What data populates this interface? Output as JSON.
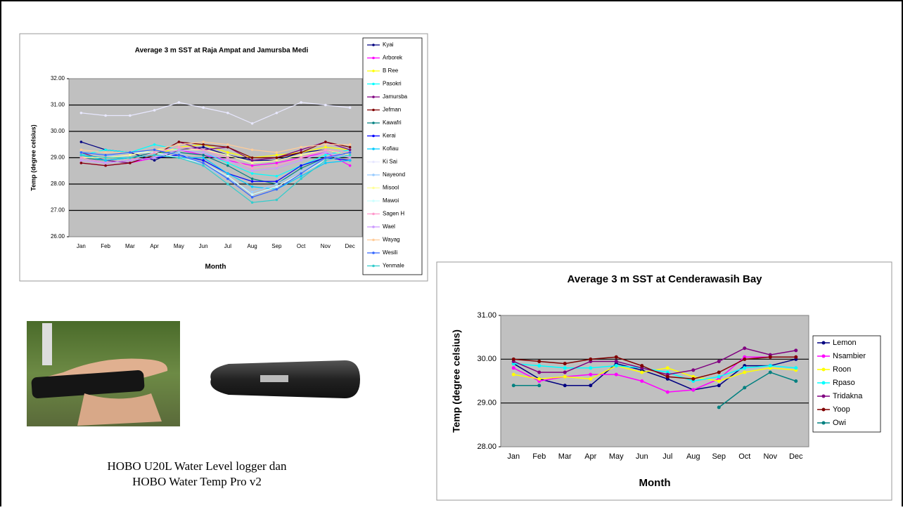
{
  "chart_data": [
    {
      "type": "line",
      "title": "Average 3 m SST at Raja Ampat and Jamursba Medi",
      "x_label": "Month",
      "y_label": "Temp (degree celsius)",
      "categories": [
        "Jan",
        "Feb",
        "Mar",
        "Apr",
        "May",
        "Jun",
        "Jul",
        "Aug",
        "Sep",
        "Oct",
        "Nov",
        "Dec"
      ],
      "ylim": [
        26,
        32
      ],
      "yticks": [
        {
          "value": 26,
          "label": "26.00"
        },
        {
          "value": 27,
          "label": "27.00"
        },
        {
          "value": 28,
          "label": "28.00"
        },
        {
          "value": 29,
          "label": "29.00"
        },
        {
          "value": 30,
          "label": "30.00"
        },
        {
          "value": 31,
          "label": "31.00"
        },
        {
          "value": 32,
          "label": "32.00"
        }
      ],
      "grid": true,
      "series": [
        {
          "name": "Kyai",
          "color": "#000080",
          "values": [
            29.6,
            29.3,
            29.2,
            28.9,
            29.3,
            29.4,
            29.1,
            28.9,
            28.9,
            29.2,
            29.3,
            29.1
          ]
        },
        {
          "name": "Arborek",
          "color": "#ff00ff",
          "values": [
            28.8,
            28.7,
            28.8,
            29.0,
            29.3,
            29.1,
            28.9,
            28.7,
            28.8,
            29.0,
            29.2,
            28.7
          ]
        },
        {
          "name": "B Ree",
          "color": "#ffff00",
          "values": [
            29.0,
            29.0,
            29.0,
            29.1,
            29.4,
            29.5,
            29.2,
            29.0,
            29.1,
            29.2,
            29.4,
            29.3
          ]
        },
        {
          "name": "Pasokri",
          "color": "#00ffff",
          "values": [
            29.1,
            29.3,
            29.2,
            29.5,
            29.3,
            29.2,
            28.8,
            28.4,
            28.3,
            28.7,
            29.1,
            29.3
          ]
        },
        {
          "name": "Jamursba",
          "color": "#800080",
          "values": [
            29.2,
            28.9,
            28.8,
            29.1,
            29.6,
            29.3,
            29.4,
            28.9,
            29.0,
            29.3,
            29.6,
            29.3
          ]
        },
        {
          "name": "Jefman",
          "color": "#800000",
          "values": [
            28.8,
            28.7,
            28.8,
            29.1,
            29.6,
            29.5,
            29.4,
            29.0,
            29.0,
            29.2,
            29.6,
            29.4
          ]
        },
        {
          "name": "Kawafri",
          "color": "#008080",
          "values": [
            29.0,
            28.9,
            29.0,
            29.2,
            29.2,
            29.1,
            28.7,
            28.2,
            28.0,
            28.6,
            29.0,
            29.1
          ]
        },
        {
          "name": "Kerai",
          "color": "#0000ff",
          "values": [
            29.0,
            28.8,
            28.9,
            29.0,
            29.1,
            28.9,
            28.4,
            28.1,
            28.1,
            28.7,
            29.0,
            28.9
          ]
        },
        {
          "name": "Kofiau",
          "color": "#00ccff",
          "values": [
            29.1,
            28.9,
            29.0,
            29.1,
            29.0,
            29.0,
            28.4,
            27.9,
            27.8,
            28.3,
            28.8,
            28.9
          ]
        },
        {
          "name": "Ki Sai",
          "color": "#e8e8ff",
          "values": [
            30.7,
            30.6,
            30.6,
            30.8,
            31.1,
            30.9,
            30.7,
            30.3,
            30.7,
            31.1,
            31.0,
            30.9
          ]
        },
        {
          "name": "Nayeond",
          "color": "#99ccff",
          "values": [
            29.2,
            29.1,
            29.0,
            29.1,
            29.2,
            28.7,
            28.2,
            27.7,
            28.0,
            28.5,
            29.0,
            29.1
          ]
        },
        {
          "name": "Misool",
          "color": "#ffff99",
          "values": [
            29.0,
            29.0,
            29.1,
            29.3,
            29.3,
            29.3,
            29.1,
            28.8,
            28.9,
            29.1,
            29.3,
            29.1
          ]
        },
        {
          "name": "Mawoi",
          "color": "#ccffff",
          "values": [
            29.2,
            29.1,
            29.2,
            29.2,
            29.0,
            28.8,
            28.3,
            27.6,
            27.9,
            28.4,
            28.9,
            29.1
          ]
        },
        {
          "name": "Sagen H",
          "color": "#ff99cc",
          "values": [
            29.0,
            28.8,
            28.9,
            29.2,
            29.4,
            29.3,
            29.0,
            28.6,
            28.7,
            29.0,
            29.3,
            29.2
          ]
        },
        {
          "name": "Wael",
          "color": "#cc99ff",
          "values": [
            28.9,
            28.8,
            28.9,
            29.0,
            29.3,
            29.2,
            28.9,
            28.5,
            28.6,
            28.9,
            29.2,
            29.0
          ]
        },
        {
          "name": "Wayag",
          "color": "#ffcc99",
          "values": [
            29.3,
            29.2,
            29.2,
            29.3,
            29.5,
            29.6,
            29.5,
            29.3,
            29.2,
            29.4,
            29.5,
            29.5
          ]
        },
        {
          "name": "Wesili",
          "color": "#3366ff",
          "values": [
            29.2,
            29.1,
            29.2,
            29.3,
            29.1,
            28.8,
            28.2,
            27.5,
            27.8,
            28.4,
            29.0,
            29.2
          ]
        },
        {
          "name": "Yenmale",
          "color": "#33cccc",
          "values": [
            29.1,
            29.0,
            29.0,
            29.1,
            29.0,
            28.7,
            28.0,
            27.3,
            27.4,
            28.2,
            28.9,
            29.1
          ]
        }
      ]
    },
    {
      "type": "line",
      "title": "Average 3 m SST at Cenderawasih Bay",
      "x_label": "Month",
      "y_label": "Temp (degree celsius)",
      "categories": [
        "Jan",
        "Feb",
        "Mar",
        "Apr",
        "May",
        "Jun",
        "Jul",
        "Aug",
        "Sep",
        "Oct",
        "Nov",
        "Dec"
      ],
      "ylim": [
        28,
        31
      ],
      "yticks": [
        {
          "value": 28,
          "label": "28.00"
        },
        {
          "value": 29,
          "label": "29.00"
        },
        {
          "value": 30,
          "label": "30.00"
        },
        {
          "value": 31,
          "label": "31.00"
        }
      ],
      "grid": true,
      "series": [
        {
          "name": "Lemon",
          "color": "#000080",
          "values": [
            29.9,
            29.55,
            29.4,
            29.4,
            29.9,
            29.75,
            29.55,
            29.3,
            29.4,
            29.85,
            29.85,
            30.0
          ]
        },
        {
          "name": "Nsambier",
          "color": "#ff00ff",
          "values": [
            29.8,
            29.5,
            29.6,
            29.65,
            29.65,
            29.5,
            29.25,
            29.3,
            29.55,
            30.05,
            30.05,
            30.05
          ]
        },
        {
          "name": "Roon",
          "color": "#ffff00",
          "values": [
            29.65,
            29.55,
            29.6,
            29.55,
            29.85,
            29.7,
            29.8,
            29.6,
            29.5,
            29.7,
            29.8,
            29.75
          ]
        },
        {
          "name": "Rpaso",
          "color": "#00ffff",
          "values": [
            29.9,
            29.85,
            29.8,
            29.8,
            29.85,
            29.8,
            29.7,
            29.5,
            29.6,
            29.8,
            29.85,
            29.8
          ]
        },
        {
          "name": "Tridakna",
          "color": "#800080",
          "values": [
            29.95,
            29.7,
            29.7,
            29.95,
            29.95,
            29.8,
            29.65,
            29.75,
            29.95,
            30.25,
            30.1,
            30.2
          ]
        },
        {
          "name": "Yoop",
          "color": "#800000",
          "values": [
            30.0,
            29.95,
            29.9,
            30.0,
            30.05,
            29.85,
            29.6,
            29.55,
            29.7,
            30.0,
            30.05,
            30.05
          ]
        },
        {
          "name": "Owi",
          "color": "#008080",
          "values": [
            29.4,
            29.4,
            null,
            null,
            null,
            null,
            null,
            null,
            28.9,
            29.35,
            29.7,
            29.5
          ]
        }
      ]
    }
  ],
  "caption": [
    "HOBO U20L Water Level logger dan",
    "HOBO Water Temp Pro v2"
  ]
}
